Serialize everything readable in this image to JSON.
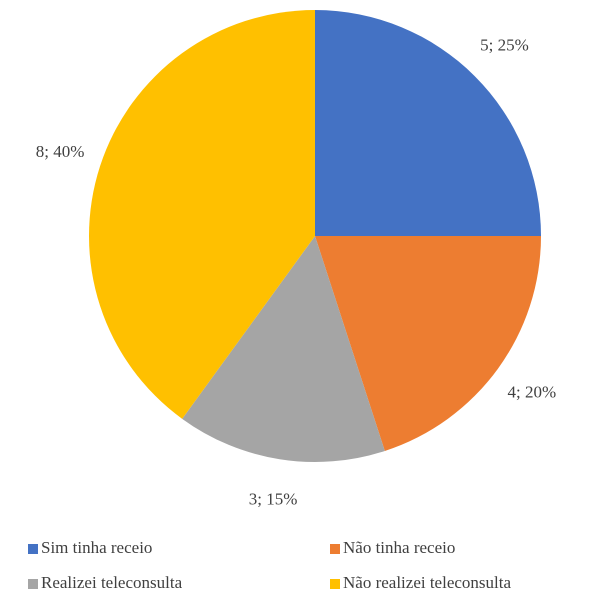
{
  "chart_data": {
    "type": "pie",
    "categories": [
      "Sim tinha receio",
      "Não tinha receio",
      "Realizei teleconsulta",
      "Não realizei teleconsulta"
    ],
    "values": [
      5,
      4,
      3,
      8
    ],
    "value_labels": [
      "5; 25%",
      "4; 20%",
      "3; 15%",
      "8; 40%"
    ],
    "colors": [
      "#4472c4",
      "#ed7d31",
      "#a5a5a5",
      "#ffc000"
    ],
    "legend": "bottom"
  }
}
